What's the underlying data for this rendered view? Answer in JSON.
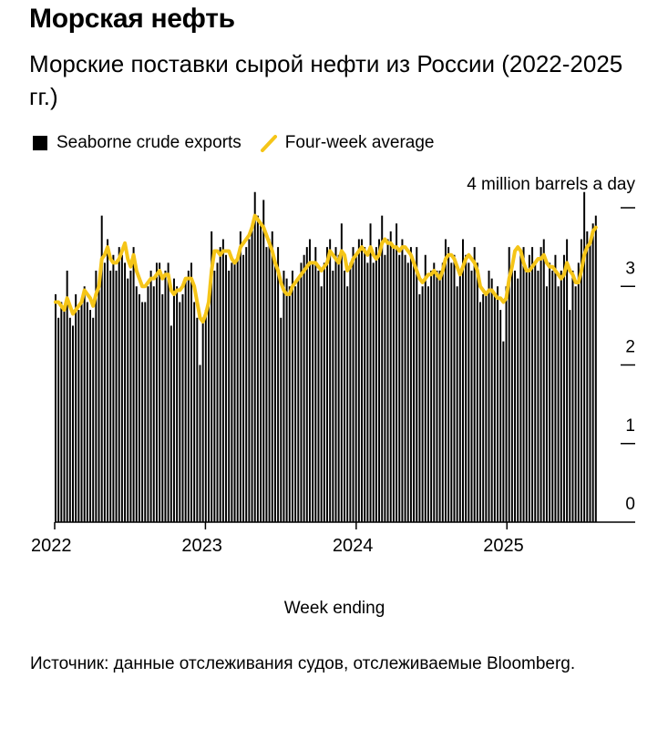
{
  "header": {
    "title": "Морская нефть",
    "subtitle": "Морские поставки сырой нефти из России (2022-2025 гг.)"
  },
  "legend": {
    "bars_label": "Seaborne crude exports",
    "line_label": "Four-week average"
  },
  "source": "Источник: данные отслеживания судов, отслеживаемые Bloomberg.",
  "colors": {
    "bars": "#000000",
    "line": "#F5C518",
    "axis": "#000000"
  },
  "chart_data": {
    "type": "bar",
    "title": "",
    "xlabel": "Week ending",
    "ylabel": "4 million barrels a day",
    "ylim": [
      0,
      4
    ],
    "y_ticks": [
      0,
      1,
      2,
      3,
      4
    ],
    "y_tick_labels": [
      "0",
      "1",
      "2",
      "3",
      ""
    ],
    "x_tick_labels": [
      "2022",
      "2023",
      "2024",
      "2025"
    ],
    "x_range": [
      "2022-01-01",
      "2025-12-31"
    ],
    "series": [
      {
        "name": "Seaborne crude exports",
        "type": "bar",
        "values": [
          2.9,
          2.6,
          2.8,
          2.7,
          3.2,
          2.6,
          2.5,
          2.9,
          2.7,
          2.8,
          3.0,
          2.8,
          2.7,
          2.6,
          3.2,
          3.1,
          3.9,
          3.3,
          3.6,
          3.2,
          3.4,
          3.2,
          3.5,
          3.4,
          3.3,
          3.1,
          3.2,
          3.5,
          3.0,
          2.9,
          2.8,
          2.8,
          3.0,
          3.2,
          3.0,
          3.3,
          3.3,
          2.9,
          3.2,
          3.3,
          2.5,
          3.1,
          3.0,
          2.8,
          2.9,
          3.1,
          3.2,
          3.3,
          2.8,
          2.6,
          2.0,
          2.6,
          2.7,
          2.9,
          3.7,
          3.2,
          3.3,
          3.5,
          3.6,
          3.4,
          3.2,
          3.3,
          3.3,
          3.4,
          3.7,
          3.4,
          3.5,
          3.6,
          3.8,
          4.2,
          3.9,
          3.8,
          4.1,
          3.5,
          3.6,
          3.7,
          3.3,
          3.5,
          2.6,
          3.2,
          3.1,
          3.0,
          3.2,
          3.0,
          3.1,
          3.3,
          3.4,
          3.5,
          3.6,
          3.3,
          3.5,
          3.2,
          3.0,
          3.3,
          3.5,
          3.6,
          3.2,
          3.5,
          3.4,
          3.8,
          3.2,
          3.0,
          3.3,
          3.5,
          3.4,
          3.6,
          3.6,
          3.5,
          3.3,
          3.8,
          3.3,
          3.5,
          3.6,
          3.9,
          3.4,
          3.6,
          3.7,
          3.5,
          3.8,
          3.4,
          3.6,
          3.4,
          3.3,
          3.5,
          3.3,
          3.5,
          2.9,
          3.0,
          3.4,
          3.0,
          3.2,
          3.3,
          3.2,
          3.2,
          3.3,
          3.6,
          3.5,
          3.3,
          3.4,
          3.0,
          3.2,
          3.6,
          3.4,
          3.3,
          3.2,
          3.5,
          3.3,
          2.8,
          2.9,
          2.9,
          3.2,
          3.1,
          2.9,
          3.0,
          2.7,
          2.3,
          3.0,
          3.5,
          3.3,
          3.2,
          3.1,
          3.4,
          3.5,
          3.2,
          3.4,
          3.5,
          3.3,
          3.2,
          3.5,
          3.6,
          3.0,
          3.3,
          3.2,
          3.4,
          3.0,
          3.2,
          3.4,
          3.6,
          2.7,
          3.2,
          3.0,
          3.3,
          3.6,
          4.2,
          3.7,
          3.6,
          3.8,
          3.9
        ]
      },
      {
        "name": "Four-week average",
        "type": "line",
        "values": [
          2.8,
          2.8,
          2.75,
          2.7,
          2.85,
          2.75,
          2.65,
          2.7,
          2.75,
          2.8,
          2.95,
          2.9,
          2.85,
          2.75,
          2.9,
          3.0,
          3.35,
          3.4,
          3.5,
          3.35,
          3.3,
          3.3,
          3.35,
          3.45,
          3.55,
          3.35,
          3.25,
          3.4,
          3.2,
          3.1,
          3.0,
          3.0,
          3.05,
          3.1,
          3.1,
          3.15,
          3.2,
          3.1,
          3.15,
          3.15,
          2.95,
          2.9,
          2.95,
          2.95,
          3.0,
          3.1,
          3.1,
          3.1,
          3.0,
          2.8,
          2.6,
          2.55,
          2.65,
          2.8,
          3.2,
          3.45,
          3.45,
          3.4,
          3.45,
          3.45,
          3.45,
          3.35,
          3.3,
          3.35,
          3.5,
          3.55,
          3.6,
          3.65,
          3.75,
          3.9,
          3.85,
          3.8,
          3.75,
          3.65,
          3.55,
          3.45,
          3.3,
          3.2,
          3.05,
          2.95,
          2.9,
          2.9,
          3.0,
          3.05,
          3.1,
          3.15,
          3.2,
          3.25,
          3.3,
          3.3,
          3.3,
          3.25,
          3.2,
          3.25,
          3.3,
          3.45,
          3.4,
          3.35,
          3.3,
          3.45,
          3.4,
          3.2,
          3.25,
          3.35,
          3.4,
          3.45,
          3.5,
          3.45,
          3.4,
          3.5,
          3.4,
          3.35,
          3.4,
          3.55,
          3.6,
          3.55,
          3.55,
          3.5,
          3.5,
          3.45,
          3.5,
          3.5,
          3.45,
          3.4,
          3.3,
          3.2,
          3.1,
          3.05,
          3.1,
          3.15,
          3.15,
          3.2,
          3.15,
          3.1,
          3.2,
          3.35,
          3.4,
          3.4,
          3.35,
          3.25,
          3.15,
          3.25,
          3.35,
          3.4,
          3.35,
          3.3,
          3.2,
          3.0,
          2.95,
          2.9,
          2.95,
          2.95,
          2.9,
          2.85,
          2.85,
          2.8,
          2.85,
          3.1,
          3.25,
          3.45,
          3.5,
          3.45,
          3.3,
          3.2,
          3.2,
          3.25,
          3.3,
          3.35,
          3.35,
          3.4,
          3.3,
          3.25,
          3.25,
          3.2,
          3.15,
          3.1,
          3.15,
          3.3,
          3.2,
          3.15,
          3.05,
          3.05,
          3.2,
          3.4,
          3.5,
          3.55,
          3.7,
          3.75
        ]
      }
    ],
    "grid": false,
    "legend_position": "top-left"
  }
}
